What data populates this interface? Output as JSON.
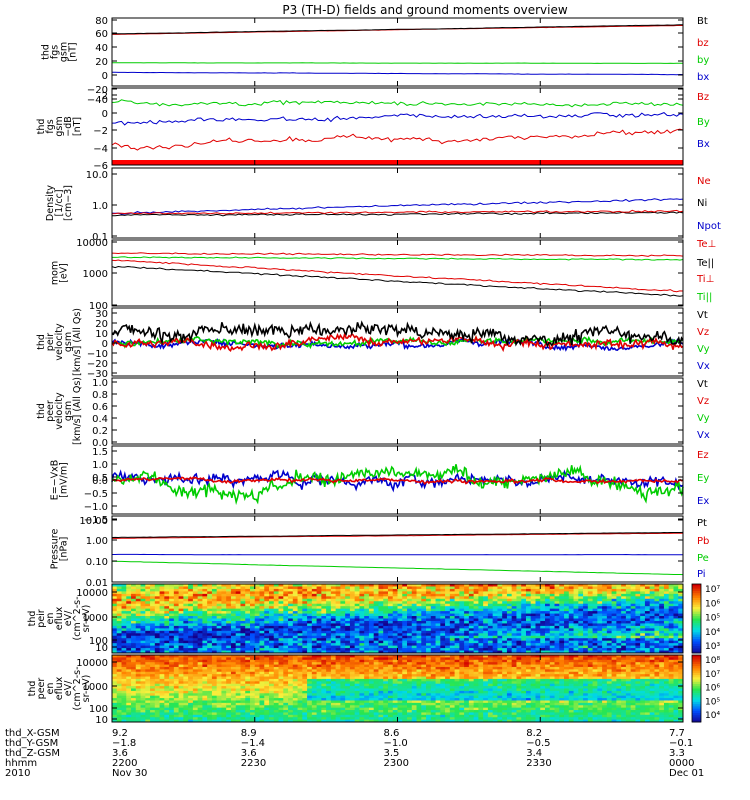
{
  "title": "P3 (TH-D) fields and ground moments overview",
  "colors": {
    "black": "#000000",
    "red": "#e00000",
    "green": "#00cc00",
    "blue": "#0000cc"
  },
  "panels": [
    {
      "ylabel": [
        "thd",
        "fgs",
        "gsm",
        "[nT]"
      ],
      "ticks": [
        "80",
        "60",
        "40",
        "20",
        "0",
        "−20",
        "−40"
      ],
      "legend": [
        {
          "label": "Bt",
          "color": "#000000"
        },
        {
          "label": "bz",
          "color": "#e00000"
        },
        {
          "label": "by",
          "color": "#00cc00"
        },
        {
          "label": "bx",
          "color": "#0000cc"
        }
      ]
    },
    {
      "ylabel": [
        "thd",
        "fgs",
        "gsm",
        "−dB",
        "[nT]"
      ],
      "ticks": [
        "2",
        "0",
        "−2",
        "−4",
        "−6"
      ],
      "legend": [
        {
          "label": "Bz",
          "color": "#e00000"
        },
        {
          "label": "By",
          "color": "#00cc00"
        },
        {
          "label": "Bx",
          "color": "#0000cc"
        }
      ]
    },
    {
      "ylabel": [
        "Density",
        "[1/cc]",
        "[cm−3]"
      ],
      "ticks": [
        "10.0",
        "1.0",
        "0.1"
      ],
      "legend": [
        {
          "label": "Ne",
          "color": "#e00000"
        },
        {
          "label": "Ni",
          "color": "#000000"
        },
        {
          "label": "Npot",
          "color": "#0000cc"
        }
      ]
    },
    {
      "ylabel": [
        "mom",
        "[eV]"
      ],
      "ticks": [
        "10000",
        "1000",
        "100"
      ],
      "legend": [
        {
          "label": "Te⊥",
          "color": "#e00000"
        },
        {
          "label": "Te||",
          "color": "#000000"
        },
        {
          "label": "Ti⊥",
          "color": "#e00000"
        },
        {
          "label": "Ti||",
          "color": "#00cc00"
        }
      ]
    },
    {
      "ylabel": [
        "thd",
        "peir",
        "velocity",
        "gsm",
        "[km/s] (All Qs)"
      ],
      "ticks": [
        "30",
        "20",
        "10",
        "0",
        "−10",
        "−20",
        "−30"
      ],
      "legend": [
        {
          "label": "Vt",
          "color": "#000000"
        },
        {
          "label": "Vz",
          "color": "#e00000"
        },
        {
          "label": "Vy",
          "color": "#00cc00"
        },
        {
          "label": "Vx",
          "color": "#0000cc"
        }
      ]
    },
    {
      "ylabel": [
        "thd",
        "peer",
        "velocity",
        "gsm",
        "[km/s] (All Qs)"
      ],
      "ticks": [
        "1.0",
        "0.8",
        "0.6",
        "0.4",
        "0.2",
        "0.0"
      ],
      "legend": [
        {
          "label": "Vt",
          "color": "#000000"
        },
        {
          "label": "Vz",
          "color": "#e00000"
        },
        {
          "label": "Vy",
          "color": "#00cc00"
        },
        {
          "label": "Vx",
          "color": "#0000cc"
        }
      ]
    },
    {
      "ylabel": [
        "E=−VxB",
        "[mV/m]"
      ],
      "ticks": [
        "1.5",
        "1.0",
        "0.5",
        "0.0",
        "−0.5",
        "−1.0",
        "−1.5"
      ],
      "legend": [
        {
          "label": "Ez",
          "color": "#e00000"
        },
        {
          "label": "Ey",
          "color": "#00cc00"
        },
        {
          "label": "Ex",
          "color": "#0000cc"
        }
      ]
    },
    {
      "ylabel": [
        "Pressure",
        "[nPa]"
      ],
      "ticks": [
        "10.00",
        "1.00",
        "0.10",
        "0.01"
      ],
      "legend": [
        {
          "label": "Pt",
          "color": "#000000"
        },
        {
          "label": "Pb",
          "color": "#e00000"
        },
        {
          "label": "Pe",
          "color": "#00cc00"
        },
        {
          "label": "Pi",
          "color": "#0000cc"
        }
      ]
    },
    {
      "ylabel": [
        "thd",
        "peir",
        "en",
        "eflux",
        "eV/",
        "(cm^2-s-",
        "sr-eV)"
      ],
      "ticks": [
        "10000",
        "1000",
        "100",
        "10"
      ],
      "legend": [],
      "colorbar_ticks": [
        "10⁷",
        "10⁶",
        "10⁵",
        "10⁴",
        "10³"
      ]
    },
    {
      "ylabel": [
        "thd",
        "peer",
        "en",
        "eflux",
        "eV/",
        "(cm^2-s-",
        "sr-eV)"
      ],
      "ticks": [
        "10000",
        "1000",
        "100",
        "10"
      ],
      "legend": [],
      "colorbar_ticks": [
        "10⁸",
        "10⁷",
        "10⁶",
        "10⁵",
        "10⁴"
      ]
    }
  ],
  "footer": {
    "row_labels": [
      "thd_X-GSM",
      "thd_Y-GSM",
      "thd_Z-GSM",
      "hhmm",
      "2010"
    ],
    "columns": [
      [
        "9.2",
        "−1.8",
        "3.6",
        "2200",
        "Nov 30"
      ],
      [
        "8.9",
        "−1.4",
        "3.6",
        "2230",
        ""
      ],
      [
        "8.6",
        "−1.0",
        "3.5",
        "2300",
        ""
      ],
      [
        "8.2",
        "−0.5",
        "3.4",
        "2330",
        ""
      ],
      [
        "7.7",
        "−0.1",
        "3.3",
        "0000",
        "Dec 01"
      ]
    ]
  },
  "chart_data": {
    "type": "line",
    "title": "P3 (TH-D) fields and ground moments overview",
    "x_label": "hhmm",
    "x_ticks": [
      "2200",
      "2230",
      "2300",
      "2330",
      "0000"
    ],
    "x_range": [
      "2010-11-30 22:00",
      "2010-12-01 00:00"
    ],
    "panels": [
      {
        "name": "fgs gsm",
        "ylim": [
          -40,
          80
        ],
        "series": [
          {
            "name": "Bt",
            "start": 52,
            "end": 68,
            "noise": 0.3
          },
          {
            "name": "bz",
            "start": 51,
            "end": 67,
            "noise": 0.3
          },
          {
            "name": "by",
            "start": 1,
            "end": 0,
            "noise": 0.2
          },
          {
            "name": "bx",
            "start": -16,
            "end": -20,
            "noise": 0.3
          }
        ]
      },
      {
        "name": "fgs gsm −dB",
        "ylim": [
          -7,
          2.5
        ],
        "series": [
          {
            "name": "Bz",
            "start": -4.5,
            "end": -3,
            "noise": 0.4
          },
          {
            "name": "By",
            "start": 0.8,
            "end": 0.5,
            "noise": 0.3
          },
          {
            "name": "Bx",
            "start": -1.7,
            "end": -0.6,
            "noise": 0.35
          }
        ]
      },
      {
        "name": "Density",
        "log": true,
        "ylim": [
          0.1,
          10
        ],
        "series": [
          {
            "name": "Ne",
            "start": 0.5,
            "end": 0.6,
            "noise": 0.05
          },
          {
            "name": "Ni",
            "start": 0.45,
            "end": 0.55,
            "noise": 0.05
          },
          {
            "name": "Npot",
            "start": 0.5,
            "end": 1.3,
            "noise": 0.05
          }
        ]
      },
      {
        "name": "Temperature",
        "log": true,
        "ylim": [
          100,
          10000
        ],
        "series": [
          {
            "name": "Te⊥",
            "start": 2500,
            "end": 300,
            "noise": 0.05
          },
          {
            "name": "Te||",
            "start": 1600,
            "end": 200,
            "noise": 0.05
          },
          {
            "name": "Ti⊥",
            "start": 4000,
            "end": 3200,
            "noise": 0.04
          },
          {
            "name": "Ti||",
            "start": 3000,
            "end": 2500,
            "noise": 0.04
          }
        ]
      },
      {
        "name": "peir velocity",
        "ylim": [
          -30,
          30
        ],
        "series": [
          {
            "name": "Vt",
            "start": 8,
            "end": 8,
            "noise": 7
          },
          {
            "name": "Vz",
            "start": 0,
            "end": 0,
            "noise": 4
          },
          {
            "name": "Vy",
            "start": 0,
            "end": 0,
            "noise": 3
          },
          {
            "name": "Vx",
            "start": -1,
            "end": -1,
            "noise": 3
          }
        ]
      },
      {
        "name": "peer velocity",
        "ylim": [
          0,
          1
        ],
        "series": []
      },
      {
        "name": "E=−VxB",
        "ylim": [
          -1.7,
          1.7
        ],
        "series": [
          {
            "name": "Ez",
            "start": 0,
            "end": 0,
            "noise": 0.1
          },
          {
            "name": "Ey",
            "start": 0,
            "end": 0,
            "noise": 0.4
          },
          {
            "name": "Ex",
            "start": 0,
            "end": 0,
            "noise": 0.35
          }
        ]
      },
      {
        "name": "Pressure",
        "log": true,
        "ylim": [
          0.008,
          12
        ],
        "series": [
          {
            "name": "Pt",
            "start": 1.1,
            "end": 1.9,
            "noise": 0.01
          },
          {
            "name": "Pb",
            "start": 1.0,
            "end": 1.8,
            "noise": 0.01
          },
          {
            "name": "Pe",
            "start": 0.08,
            "end": 0.018,
            "noise": 0.01
          },
          {
            "name": "Pi",
            "start": 0.17,
            "end": 0.17,
            "noise": 0.005
          }
        ]
      },
      {
        "name": "peir en eflux",
        "type": "heatmap",
        "ylim": [
          6,
          20000
        ]
      },
      {
        "name": "peer en eflux",
        "type": "heatmap",
        "ylim": [
          6,
          20000
        ]
      }
    ]
  }
}
